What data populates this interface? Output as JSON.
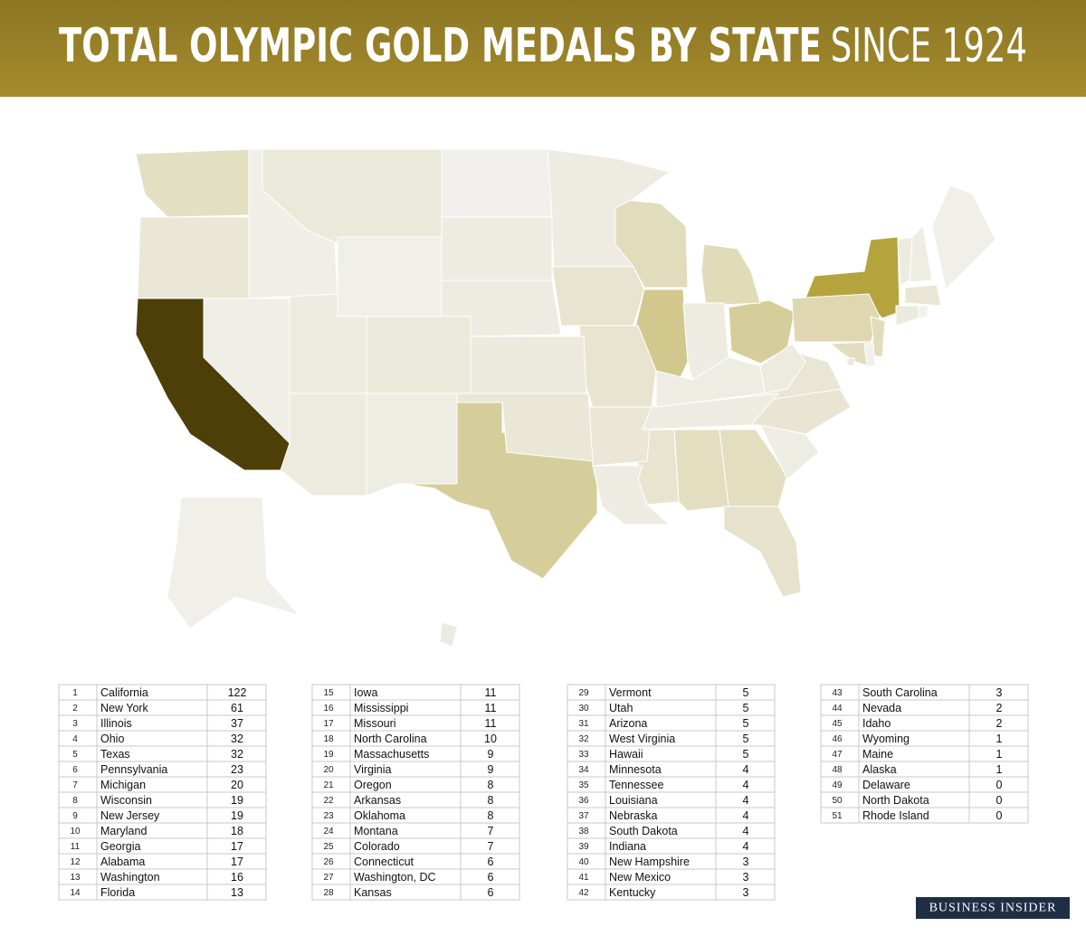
{
  "header": {
    "title": "TOTAL OLYMPIC GOLD MEDALS BY STATE",
    "subtitle": "SINCE 1924"
  },
  "tables": [
    {
      "rows": [
        [
          1,
          "California",
          122
        ],
        [
          2,
          "New York",
          61
        ],
        [
          3,
          "Illinois",
          37
        ],
        [
          4,
          "Ohio",
          32
        ],
        [
          5,
          "Texas",
          32
        ],
        [
          6,
          "Pennsylvania",
          23
        ],
        [
          7,
          "Michigan",
          20
        ],
        [
          8,
          "Wisconsin",
          19
        ],
        [
          9,
          "New Jersey",
          19
        ],
        [
          10,
          "Maryland",
          18
        ],
        [
          11,
          "Georgia",
          17
        ],
        [
          12,
          "Alabama",
          17
        ],
        [
          13,
          "Washington",
          16
        ],
        [
          14,
          "Florida",
          13
        ]
      ]
    },
    {
      "rows": [
        [
          15,
          "Iowa",
          11
        ],
        [
          16,
          "Mississippi",
          11
        ],
        [
          17,
          "Missouri",
          11
        ],
        [
          18,
          "North Carolina",
          10
        ],
        [
          19,
          "Massachusetts",
          9
        ],
        [
          20,
          "Virginia",
          9
        ],
        [
          21,
          "Oregon",
          8
        ],
        [
          22,
          "Arkansas",
          8
        ],
        [
          23,
          "Oklahoma",
          8
        ],
        [
          24,
          "Montana",
          7
        ],
        [
          25,
          "Colorado",
          7
        ],
        [
          26,
          "Connecticut",
          6
        ],
        [
          27,
          "Washington, DC",
          6
        ],
        [
          28,
          "Kansas",
          6
        ]
      ]
    },
    {
      "rows": [
        [
          29,
          "Vermont",
          5
        ],
        [
          30,
          "Utah",
          5
        ],
        [
          31,
          "Arizona",
          5
        ],
        [
          32,
          "West Virginia",
          5
        ],
        [
          33,
          "Hawaii",
          5
        ],
        [
          34,
          "Minnesota",
          4
        ],
        [
          35,
          "Tennessee",
          4
        ],
        [
          36,
          "Louisiana",
          4
        ],
        [
          37,
          "Nebraska",
          4
        ],
        [
          38,
          "South Dakota",
          4
        ],
        [
          39,
          "Indiana",
          4
        ],
        [
          40,
          "New Hampshire",
          3
        ],
        [
          41,
          "New Mexico",
          3
        ],
        [
          42,
          "Kentucky",
          3
        ]
      ]
    },
    {
      "rows": [
        [
          43,
          "South Carolina",
          3
        ],
        [
          44,
          "Nevada",
          2
        ],
        [
          45,
          "Idaho",
          2
        ],
        [
          46,
          "Wyoming",
          1
        ],
        [
          47,
          "Maine",
          1
        ],
        [
          48,
          "Alaska",
          1
        ],
        [
          49,
          "Delaware",
          0
        ],
        [
          50,
          "North Dakota",
          0
        ],
        [
          51,
          "Rhode Island",
          0
        ]
      ]
    }
  ],
  "logo": "BUSINESS INSIDER"
}
